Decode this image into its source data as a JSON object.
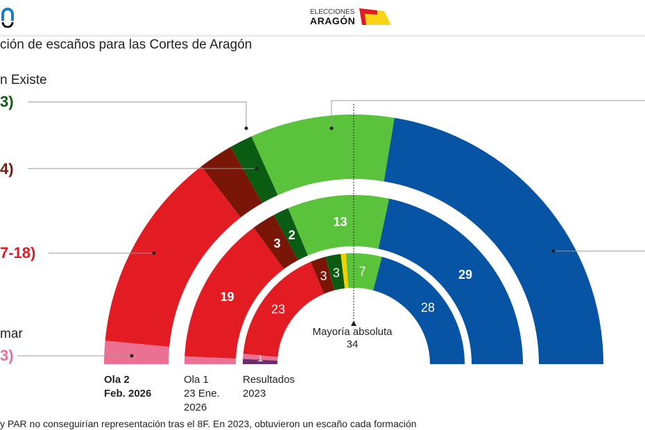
{
  "header": {
    "logo_left": "0",
    "logo_right_top": "ELECCIONES",
    "logo_right_bottom": "ARAGÓN"
  },
  "title": "ción de escaños para las Cortes de Aragón",
  "party_labels": [
    {
      "name_text": "n Existe",
      "value_text": "3)",
      "color": "#0a5c12"
    },
    {
      "name_text": "",
      "value_text": "4)",
      "color": "#7a1608"
    },
    {
      "name_text": "",
      "value_text": "7-18)",
      "color": "#e31b23"
    },
    {
      "name_text": "mar",
      "value_text": "3)",
      "color": "#ec7094"
    }
  ],
  "majority": {
    "label": "Mayoría absoluta",
    "value": "34"
  },
  "footnote": "y PAR no conseguirían representación tras el 8F. En 2023, obtuvieron un escaño cada formación",
  "colors": {
    "iu": "#6b2d6e",
    "podemos": "#ec7094",
    "psoe": "#e31b23",
    "cha": "#7a1608",
    "te": "#0a5c12",
    "par": "#f5d000",
    "vox": "#5bc23c",
    "pp": "#0754a5"
  },
  "chart_data": {
    "type": "parliament-semicircle",
    "total_seats": 67,
    "majority": 34,
    "rings": [
      {
        "label_line1": "Ola 2",
        "label_line2": "Feb. 2026",
        "label_line3": "",
        "bold": true,
        "segments": [
          {
            "party": "podemos",
            "seats": 2,
            "label": ""
          },
          {
            "party": "psoe",
            "seats": 17.5,
            "label": ""
          },
          {
            "party": "cha",
            "seats": 3,
            "label": ""
          },
          {
            "party": "te",
            "seats": 2,
            "label": ""
          },
          {
            "party": "vox",
            "seats": 12.5,
            "label": ""
          },
          {
            "party": "pp",
            "seats": 30,
            "label": ""
          }
        ]
      },
      {
        "label_line1": "Ola 1",
        "label_line2": "23 Ene.",
        "label_line3": "2026",
        "bold": false,
        "segments": [
          {
            "party": "podemos",
            "seats": 1,
            "label": ""
          },
          {
            "party": "psoe",
            "seats": 19,
            "label": "19"
          },
          {
            "party": "cha",
            "seats": 3,
            "label": "3"
          },
          {
            "party": "te",
            "seats": 2,
            "label": "2"
          },
          {
            "party": "vox",
            "seats": 13,
            "label": "13"
          },
          {
            "party": "pp",
            "seats": 29,
            "label": "29"
          }
        ]
      },
      {
        "label_line1": "Resultados",
        "label_line2": "2023",
        "label_line3": "",
        "bold": false,
        "segments": [
          {
            "party": "iu",
            "seats": 1,
            "label": ""
          },
          {
            "party": "podemos",
            "seats": 1,
            "label": "1"
          },
          {
            "party": "psoe",
            "seats": 23,
            "label": "23"
          },
          {
            "party": "cha",
            "seats": 3,
            "label": "3"
          },
          {
            "party": "te",
            "seats": 3,
            "label": "3"
          },
          {
            "party": "par",
            "seats": 1,
            "label": ""
          },
          {
            "party": "vox",
            "seats": 7,
            "label": "7"
          },
          {
            "party": "pp",
            "seats": 28,
            "label": "28"
          }
        ]
      }
    ]
  }
}
